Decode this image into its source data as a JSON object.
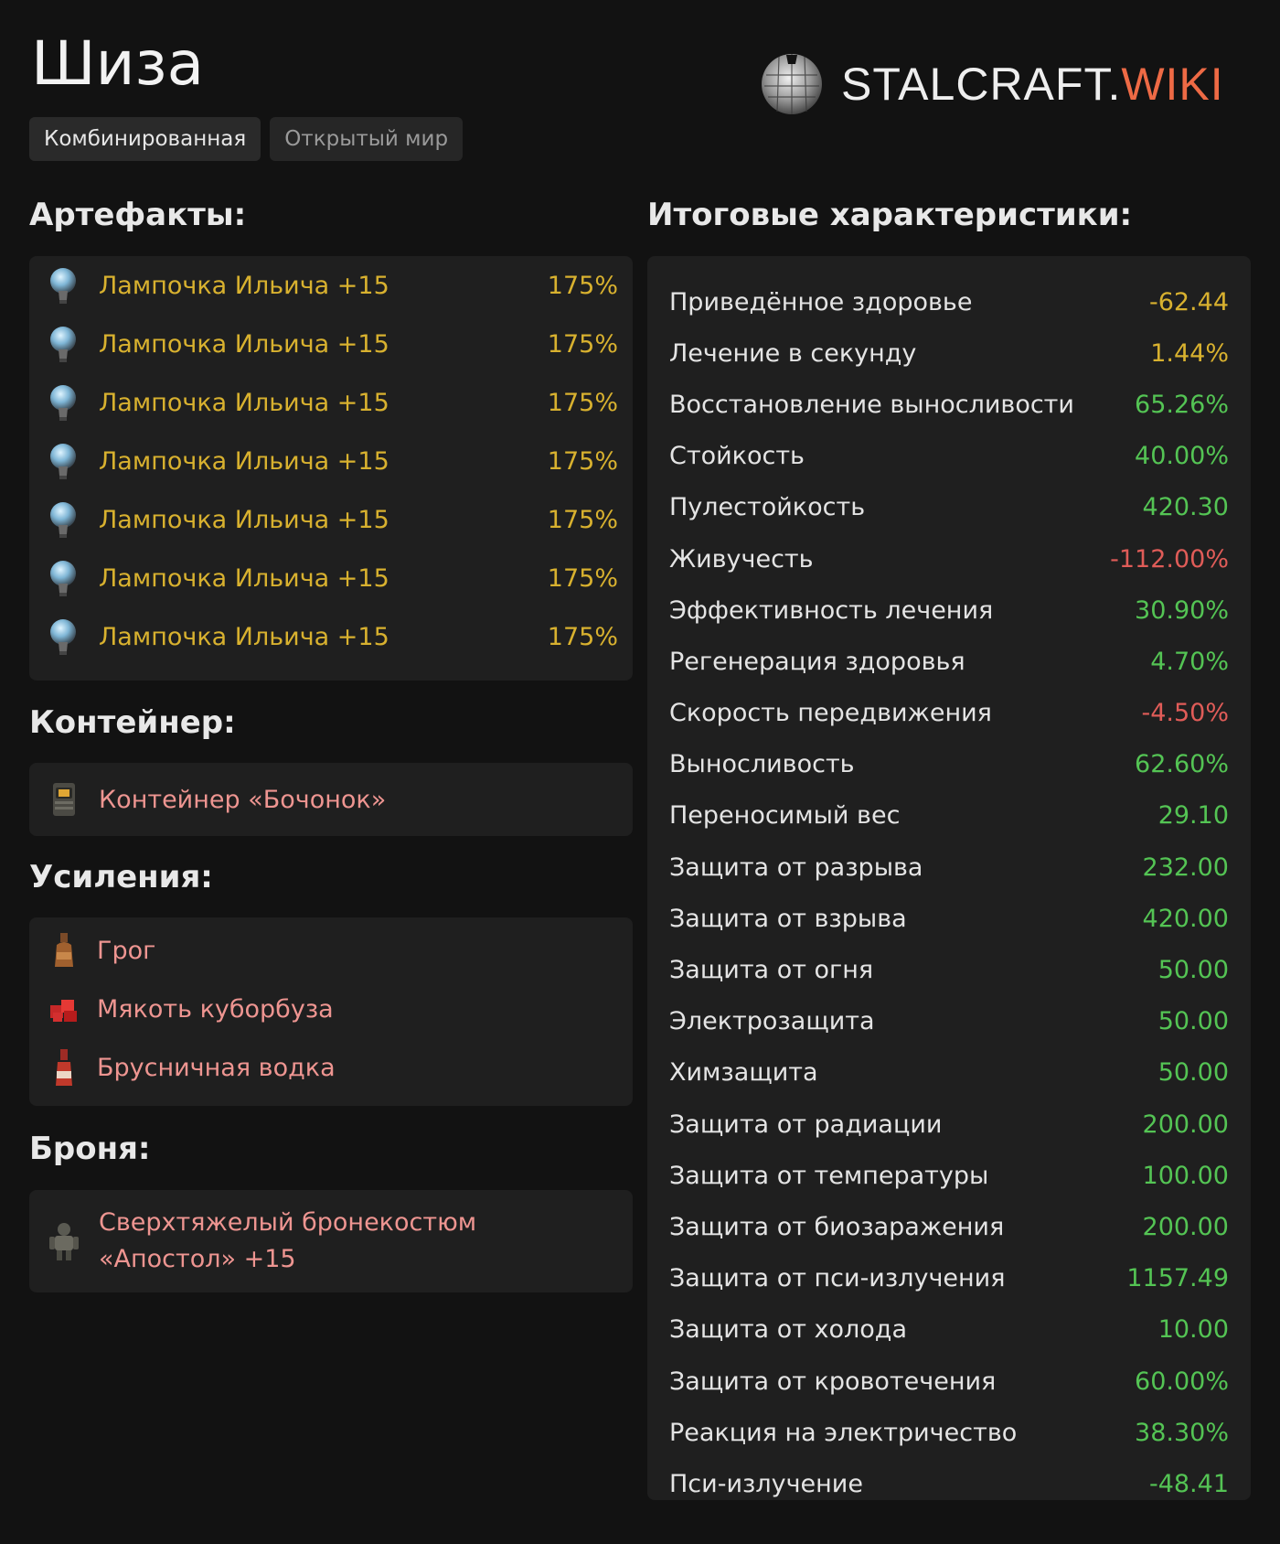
{
  "page": {
    "title": "Шиза"
  },
  "brand": {
    "name": "STALCRAFT.",
    "suffix": "WIKI"
  },
  "tags": [
    {
      "label": "Комбинированная",
      "active": true
    },
    {
      "label": "Открытый мир",
      "active": false
    }
  ],
  "artifacts": {
    "heading": "Артефакты:",
    "items": [
      {
        "name": "Лампочка Ильича +15",
        "percent": "175%",
        "icon": "glowing-orb-artifact-icon"
      },
      {
        "name": "Лампочка Ильича +15",
        "percent": "175%",
        "icon": "glowing-orb-artifact-icon"
      },
      {
        "name": "Лампочка Ильича +15",
        "percent": "175%",
        "icon": "glowing-orb-artifact-icon"
      },
      {
        "name": "Лампочка Ильича +15",
        "percent": "175%",
        "icon": "glowing-orb-artifact-icon"
      },
      {
        "name": "Лампочка Ильича +15",
        "percent": "175%",
        "icon": "glowing-orb-artifact-icon"
      },
      {
        "name": "Лампочка Ильича +15",
        "percent": "175%",
        "icon": "glowing-orb-artifact-icon"
      },
      {
        "name": "Лампочка Ильича +15",
        "percent": "175%",
        "icon": "glowing-orb-artifact-icon"
      }
    ]
  },
  "container": {
    "heading": "Контейнер:",
    "name": "Контейнер «Бочонок»",
    "icon": "container-icon"
  },
  "boosts": {
    "heading": "Усиления:",
    "items": [
      {
        "name": "Грог",
        "icon": "bottle-icon"
      },
      {
        "name": "Мякоть куборбуза",
        "icon": "melon-cubes-icon"
      },
      {
        "name": "Брусничная водка",
        "icon": "vodka-bottle-icon"
      }
    ]
  },
  "armor": {
    "heading": "Броня:",
    "name_line1": "Сверхтяжелый бронекостюм",
    "name_line2": "«Апостол» +15",
    "icon": "armor-suit-icon"
  },
  "stats": {
    "heading": "Итоговые характеристики:",
    "rows": [
      {
        "label": "Приведённое здоровье",
        "value": "-62.44",
        "tone": "gold"
      },
      {
        "label": "Лечение в секунду",
        "value": "1.44%",
        "tone": "gold"
      },
      {
        "label": "Восстановление выносливости",
        "value": "65.26%",
        "tone": "green"
      },
      {
        "label": "Стойкость",
        "value": "40.00%",
        "tone": "green"
      },
      {
        "label": "Пулестойкость",
        "value": "420.30",
        "tone": "green"
      },
      {
        "label": "Живучесть",
        "value": "-112.00%",
        "tone": "red"
      },
      {
        "label": "Эффективность лечения",
        "value": "30.90%",
        "tone": "green"
      },
      {
        "label": "Регенерация здоровья",
        "value": "4.70%",
        "tone": "green"
      },
      {
        "label": "Скорость передвижения",
        "value": "-4.50%",
        "tone": "red"
      },
      {
        "label": "Выносливость",
        "value": "62.60%",
        "tone": "green"
      },
      {
        "label": "Переносимый вес",
        "value": "29.10",
        "tone": "green"
      },
      {
        "label": "Защита от разрыва",
        "value": "232.00",
        "tone": "green"
      },
      {
        "label": "Защита от взрыва",
        "value": "420.00",
        "tone": "green"
      },
      {
        "label": "Защита от огня",
        "value": "50.00",
        "tone": "green"
      },
      {
        "label": "Электрозащита",
        "value": "50.00",
        "tone": "green"
      },
      {
        "label": "Химзащита",
        "value": "50.00",
        "tone": "green"
      },
      {
        "label": "Защита от радиации",
        "value": "200.00",
        "tone": "green"
      },
      {
        "label": "Защита от температуры",
        "value": "100.00",
        "tone": "green"
      },
      {
        "label": "Защита от биозаражения",
        "value": "200.00",
        "tone": "green"
      },
      {
        "label": "Защита от пси-излучения",
        "value": "1157.49",
        "tone": "green"
      },
      {
        "label": "Защита от холода",
        "value": "10.00",
        "tone": "green"
      },
      {
        "label": "Защита от кровотечения",
        "value": "60.00%",
        "tone": "green"
      },
      {
        "label": "Реакция на электричество",
        "value": "38.30%",
        "tone": "green"
      },
      {
        "label": "Пси-излучение",
        "value": "-48.41",
        "tone": "green"
      }
    ]
  },
  "colors": {
    "background": "#121212",
    "panel": "#1f1f1f",
    "gold": "#d8b12f",
    "green": "#54c454",
    "red": "#e05c58",
    "pink": "#ee9591",
    "wiki_accent": "#ee6a45"
  }
}
